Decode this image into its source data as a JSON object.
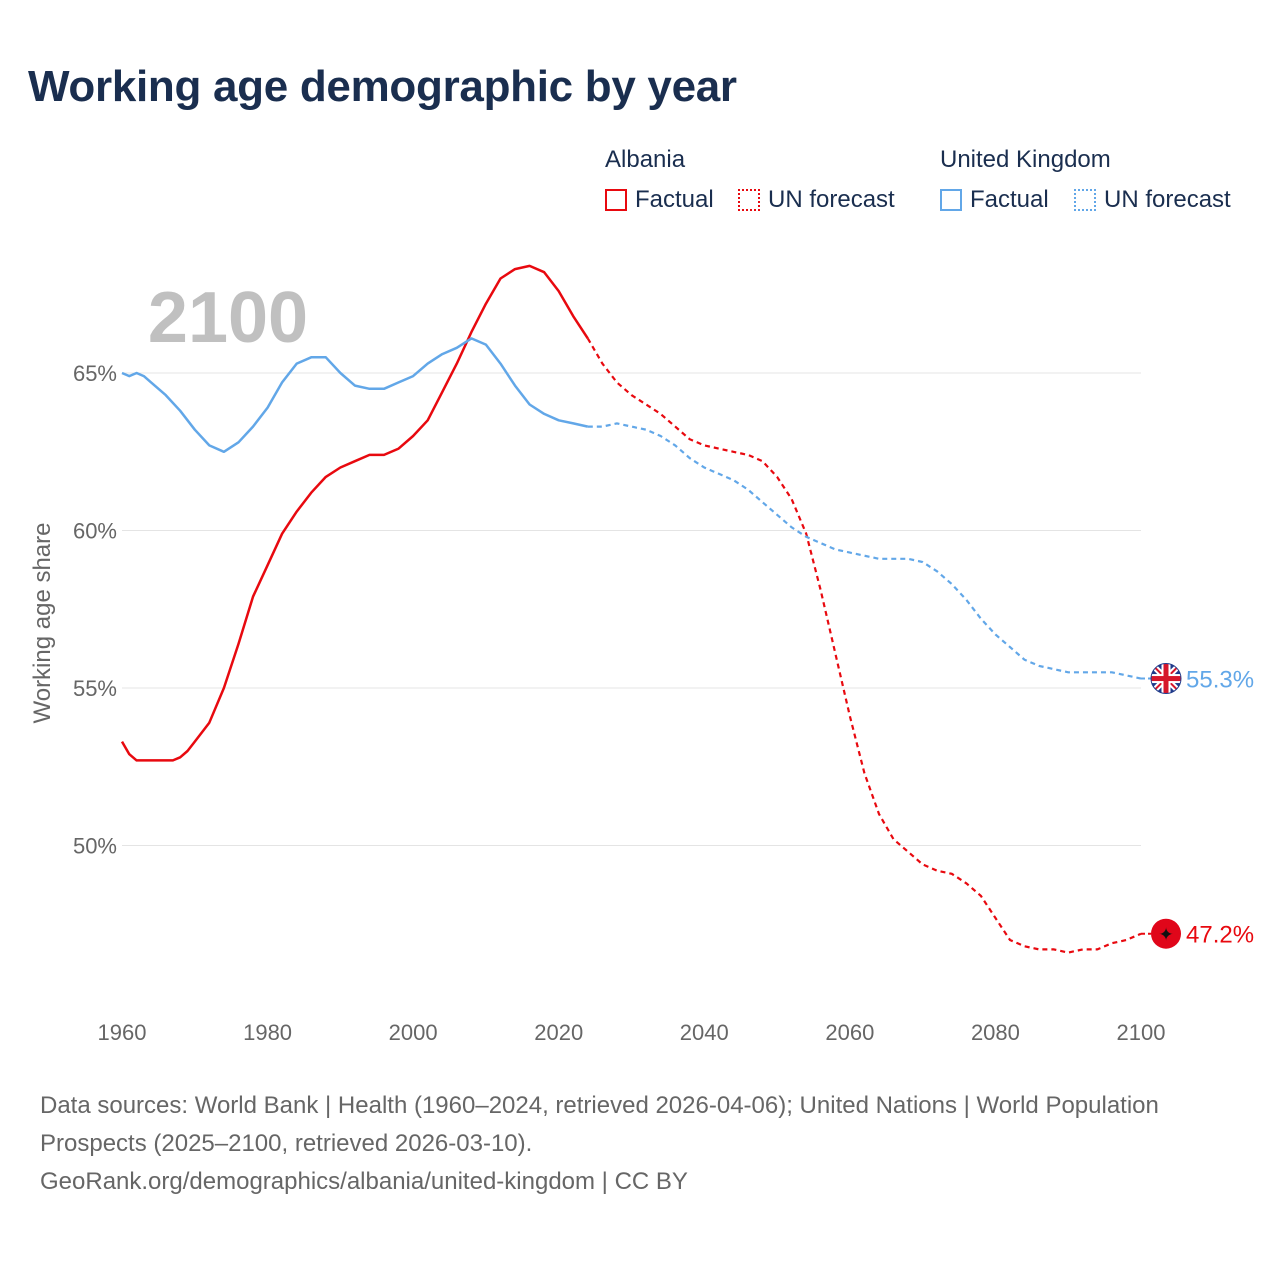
{
  "title": "Working age demographic by year",
  "year_label": "2100",
  "legend": {
    "groups": [
      {
        "name": "Albania",
        "color": "#e8090f",
        "factual_label": "Factual",
        "forecast_label": "UN forecast"
      },
      {
        "name": "United Kingdom",
        "color": "#62a7e8",
        "factual_label": "Factual",
        "forecast_label": "UN forecast"
      }
    ]
  },
  "sources": {
    "line1": "Data sources: World Bank | Health (1960–2024, retrieved 2026-04-06); United Nations | World Population Prospects (2025–2100, retrieved 2026-03-10).",
    "line2": "GeoRank.org/demographics/albania/united-kingdom | CC BY"
  },
  "chart_data": {
    "type": "line",
    "title": "Working age demographic by year",
    "xlabel": "",
    "ylabel": "Working age share",
    "xlim": [
      1960,
      2100
    ],
    "ylim": [
      45,
      69
    ],
    "x_ticks": [
      "1960",
      "1980",
      "2000",
      "2020",
      "2040",
      "2060",
      "2080",
      "2100"
    ],
    "x_tick_values": [
      1960,
      1980,
      2000,
      2020,
      2040,
      2060,
      2080,
      2100
    ],
    "y_ticks": [
      "50%",
      "55%",
      "60%",
      "65%"
    ],
    "y_tick_values": [
      50,
      55,
      60,
      65
    ],
    "grid": true,
    "factual_end_year": 2024,
    "series": [
      {
        "name": "Albania",
        "color": "#e8090f",
        "end_label": "47.2%",
        "x": [
          1960,
          1961,
          1962,
          1964,
          1967,
          1968,
          1969,
          1970,
          1972,
          1974,
          1976,
          1978,
          1980,
          1982,
          1984,
          1986,
          1988,
          1990,
          1992,
          1994,
          1996,
          1998,
          2000,
          2002,
          2004,
          2006,
          2008,
          2010,
          2012,
          2014,
          2016,
          2018,
          2020,
          2022,
          2024,
          2026,
          2028,
          2030,
          2032,
          2034,
          2036,
          2038,
          2040,
          2042,
          2044,
          2046,
          2048,
          2050,
          2052,
          2054,
          2056,
          2058,
          2060,
          2062,
          2064,
          2066,
          2068,
          2070,
          2072,
          2074,
          2076,
          2078,
          2080,
          2082,
          2084,
          2086,
          2088,
          2090,
          2092,
          2094,
          2096,
          2098,
          2100
        ],
        "values": [
          53.3,
          52.9,
          52.7,
          52.7,
          52.7,
          52.8,
          53.0,
          53.3,
          53.9,
          55.0,
          56.4,
          57.9,
          58.9,
          59.9,
          60.6,
          61.2,
          61.7,
          62.0,
          62.2,
          62.4,
          62.4,
          62.6,
          63.0,
          63.5,
          64.4,
          65.3,
          66.3,
          67.2,
          68.0,
          68.3,
          68.4,
          68.2,
          67.6,
          66.8,
          66.1,
          65.3,
          64.7,
          64.3,
          64.0,
          63.7,
          63.3,
          62.9,
          62.7,
          62.6,
          62.5,
          62.4,
          62.2,
          61.7,
          61.0,
          59.9,
          58.1,
          56.1,
          54.1,
          52.3,
          51.0,
          50.2,
          49.8,
          49.4,
          49.2,
          49.1,
          48.8,
          48.4,
          47.7,
          47.0,
          46.8,
          46.7,
          46.7,
          46.6,
          46.7,
          46.7,
          46.9,
          47.0,
          47.2
        ]
      },
      {
        "name": "United Kingdom",
        "color": "#62a7e8",
        "end_label": "55.3%",
        "x": [
          1960,
          1961,
          1962,
          1963,
          1964,
          1966,
          1968,
          1970,
          1972,
          1974,
          1976,
          1978,
          1980,
          1982,
          1984,
          1986,
          1988,
          1990,
          1992,
          1994,
          1996,
          1998,
          2000,
          2002,
          2004,
          2006,
          2008,
          2010,
          2012,
          2014,
          2016,
          2018,
          2020,
          2022,
          2024,
          2026,
          2028,
          2030,
          2032,
          2034,
          2036,
          2038,
          2040,
          2042,
          2044,
          2046,
          2048,
          2050,
          2052,
          2054,
          2056,
          2058,
          2060,
          2062,
          2064,
          2066,
          2068,
          2070,
          2072,
          2074,
          2076,
          2078,
          2080,
          2082,
          2084,
          2086,
          2088,
          2090,
          2092,
          2094,
          2096,
          2098,
          2100
        ],
        "values": [
          65.0,
          64.9,
          65.0,
          64.9,
          64.7,
          64.3,
          63.8,
          63.2,
          62.7,
          62.5,
          62.8,
          63.3,
          63.9,
          64.7,
          65.3,
          65.5,
          65.5,
          65.0,
          64.6,
          64.5,
          64.5,
          64.7,
          64.9,
          65.3,
          65.6,
          65.8,
          66.1,
          65.9,
          65.3,
          64.6,
          64.0,
          63.7,
          63.5,
          63.4,
          63.3,
          63.3,
          63.4,
          63.3,
          63.2,
          63.0,
          62.7,
          62.3,
          62.0,
          61.8,
          61.6,
          61.3,
          60.9,
          60.5,
          60.1,
          59.8,
          59.6,
          59.4,
          59.3,
          59.2,
          59.1,
          59.1,
          59.1,
          59.0,
          58.7,
          58.3,
          57.8,
          57.2,
          56.7,
          56.3,
          55.9,
          55.7,
          55.6,
          55.5,
          55.5,
          55.5,
          55.5,
          55.4,
          55.3
        ]
      }
    ]
  }
}
